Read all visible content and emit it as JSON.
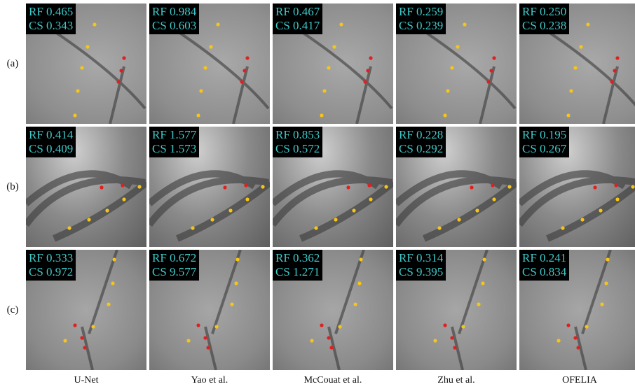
{
  "rows": [
    {
      "label": "(a)",
      "panels": [
        {
          "rf": "RF 0.465",
          "cs": "CS 0.343"
        },
        {
          "rf": "RF 0.984",
          "cs": "CS 0.603"
        },
        {
          "rf": "RF 0.467",
          "cs": "CS 0.417"
        },
        {
          "rf": "RF 0.259",
          "cs": "CS 0.239"
        },
        {
          "rf": "RF 0.250",
          "cs": "CS 0.238"
        }
      ]
    },
    {
      "label": "(b)",
      "panels": [
        {
          "rf": "RF 0.414",
          "cs": "CS 0.409"
        },
        {
          "rf": "RF 1.577",
          "cs": "CS 1.573"
        },
        {
          "rf": "RF 0.853",
          "cs": "CS 0.572"
        },
        {
          "rf": "RF 0.228",
          "cs": "CS 0.292"
        },
        {
          "rf": "RF 0.195",
          "cs": "CS 0.267"
        }
      ]
    },
    {
      "label": "(c)",
      "panels": [
        {
          "rf": "RF 0.333",
          "cs": "CS 0.972"
        },
        {
          "rf": "RF 0.672",
          "cs": "CS 9.577"
        },
        {
          "rf": "RF 0.362",
          "cs": "CS 1.271"
        },
        {
          "rf": "RF 0.314",
          "cs": "CS 9.395"
        },
        {
          "rf": "RF 0.241",
          "cs": "CS 0.834"
        }
      ]
    }
  ],
  "columns": [
    "U-Net",
    "Yao et al.",
    "McCouat et al.",
    "Zhu et al.",
    "OFELIA"
  ]
}
